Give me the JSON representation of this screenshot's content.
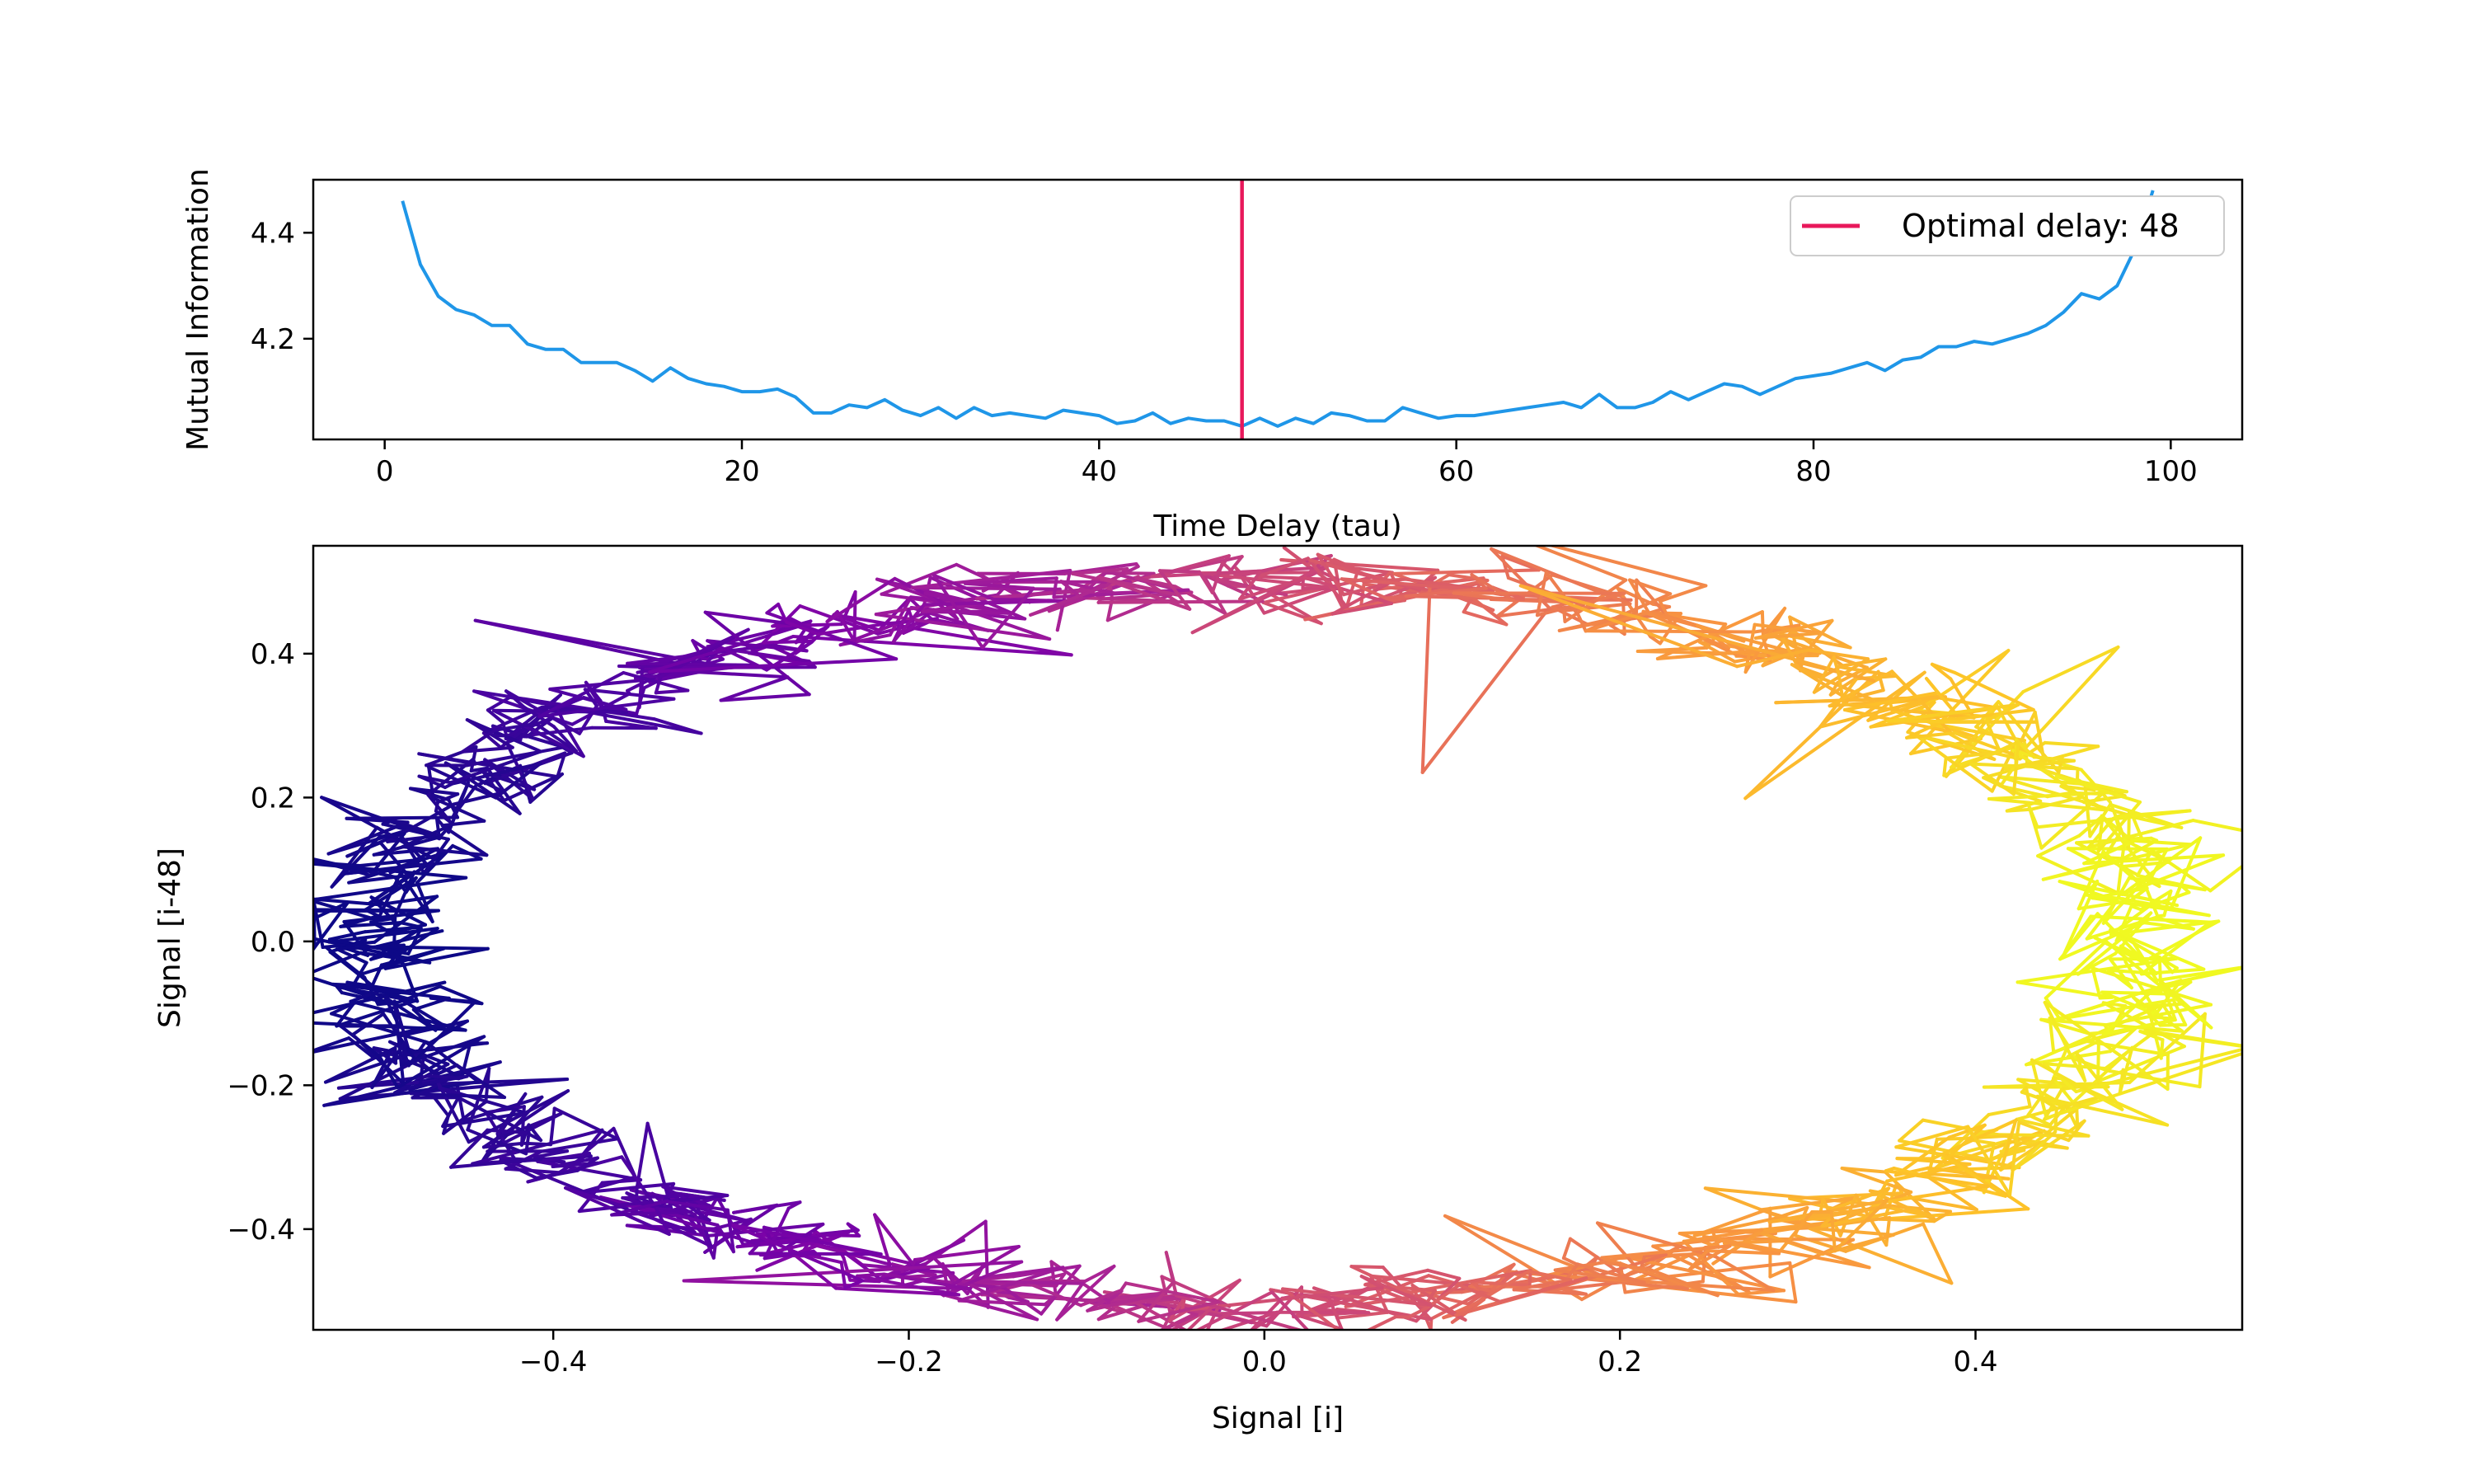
{
  "chart_data": [
    {
      "type": "line",
      "xlabel": "Time Delay (tau)",
      "ylabel": "Mutual Information",
      "xlim": [
        -4,
        104
      ],
      "ylim": [
        4.01,
        4.5
      ],
      "xticks": [
        0,
        20,
        40,
        60,
        80,
        100
      ],
      "yticks": [
        4.2,
        4.4
      ],
      "series": [
        {
          "color": "#1f96e8",
          "x": [
            1,
            2,
            3,
            4,
            5,
            6,
            7,
            8,
            9,
            10,
            11,
            12,
            13,
            14,
            15,
            16,
            17,
            18,
            19,
            20,
            21,
            22,
            23,
            24,
            25,
            26,
            27,
            28,
            29,
            30,
            31,
            32,
            33,
            34,
            35,
            36,
            37,
            38,
            39,
            40,
            41,
            42,
            43,
            44,
            45,
            46,
            47,
            48,
            49,
            50,
            51,
            52,
            53,
            54,
            55,
            56,
            57,
            58,
            59,
            60,
            61,
            62,
            63,
            64,
            65,
            66,
            67,
            68,
            69,
            70,
            71,
            72,
            73,
            74,
            75,
            76,
            77,
            78,
            79,
            80,
            81,
            82,
            83,
            84,
            85,
            86,
            87,
            88,
            89,
            90,
            91,
            92,
            93,
            94,
            95,
            96,
            97,
            98,
            99
          ],
          "values": [
            4.46,
            4.34,
            4.28,
            4.255,
            4.245,
            4.225,
            4.225,
            4.19,
            4.18,
            4.18,
            4.155,
            4.155,
            4.155,
            4.14,
            4.12,
            4.145,
            4.125,
            4.115,
            4.11,
            4.1,
            4.1,
            4.105,
            4.09,
            4.06,
            4.06,
            4.075,
            4.07,
            4.085,
            4.065,
            4.055,
            4.07,
            4.05,
            4.07,
            4.055,
            4.06,
            4.055,
            4.05,
            4.065,
            4.06,
            4.055,
            4.04,
            4.045,
            4.06,
            4.04,
            4.05,
            4.045,
            4.045,
            4.035,
            4.05,
            4.035,
            4.05,
            4.04,
            4.06,
            4.055,
            4.045,
            4.045,
            4.07,
            4.06,
            4.05,
            4.055,
            4.055,
            4.06,
            4.065,
            4.07,
            4.075,
            4.08,
            4.07,
            4.095,
            4.07,
            4.07,
            4.08,
            4.1,
            4.085,
            4.1,
            4.115,
            4.11,
            4.095,
            4.11,
            4.125,
            4.13,
            4.135,
            4.145,
            4.155,
            4.14,
            4.16,
            4.165,
            4.185,
            4.185,
            4.195,
            4.19,
            4.2,
            4.21,
            4.225,
            4.25,
            4.285,
            4.275,
            4.3,
            4.37,
            4.48
          ]
        }
      ],
      "vline": {
        "x": 48,
        "color": "#e8185b"
      },
      "legend": {
        "position": "top-right",
        "entries": [
          "Optimal delay: 48"
        ]
      }
    },
    {
      "type": "line",
      "xlabel": "Signal [i]",
      "ylabel": "Signal [i-48]",
      "xlim": [
        -0.535,
        0.55
      ],
      "ylim": [
        -0.54,
        0.55
      ],
      "xticks": [
        -0.4,
        -0.2,
        0.0,
        0.2,
        0.4
      ],
      "xtick_labels": [
        "−0.4",
        "−0.2",
        "0.0",
        "0.2",
        "0.4"
      ],
      "yticks": [
        -0.4,
        -0.2,
        0.0,
        0.2,
        0.4
      ],
      "ytick_labels": [
        "−0.4",
        "−0.2",
        "0.0",
        "0.2",
        "0.4"
      ],
      "trajectory": {
        "shape": "noisy ellipse",
        "center": [
          0.0,
          0.0
        ],
        "radius_x": 0.5,
        "radius_y": 0.5,
        "noise": 0.025,
        "colormap": "plasma",
        "color_start": "#f0f921",
        "color_end": "#0d0887"
      }
    }
  ]
}
